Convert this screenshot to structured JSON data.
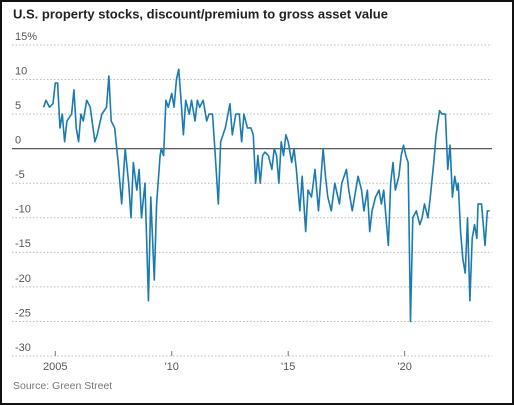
{
  "chart_data": {
    "type": "line",
    "title": "U.S. property stocks, discount/premium to gross asset value",
    "source": "Source: Green Street",
    "color": "#1b7bb0",
    "x": [
      2004.5,
      2004.6,
      2004.75,
      2004.9,
      2005.0,
      2005.1,
      2005.2,
      2005.3,
      2005.4,
      2005.5,
      2005.7,
      2005.8,
      2005.9,
      2006.0,
      2006.1,
      2006.2,
      2006.35,
      2006.5,
      2006.7,
      2006.8,
      2007.0,
      2007.2,
      2007.3,
      2007.4,
      2007.55,
      2007.7,
      2007.85,
      2008.0,
      2008.15,
      2008.25,
      2008.35,
      2008.5,
      2008.6,
      2008.7,
      2008.85,
      2009.0,
      2009.1,
      2009.25,
      2009.35,
      2009.5,
      2009.55,
      2009.65,
      2009.75,
      2009.85,
      2010.0,
      2010.1,
      2010.2,
      2010.3,
      2010.4,
      2010.5,
      2010.6,
      2010.75,
      2010.85,
      2011.0,
      2011.1,
      2011.2,
      2011.35,
      2011.5,
      2011.6,
      2011.75,
      2011.85,
      2012.0,
      2012.1,
      2012.2,
      2012.3,
      2012.5,
      2012.6,
      2012.75,
      2012.9,
      2013.0,
      2013.1,
      2013.25,
      2013.4,
      2013.5,
      2013.6,
      2013.7,
      2013.8,
      2013.9,
      2014.0,
      2014.15,
      2014.3,
      2014.4,
      2014.5,
      2014.6,
      2014.7,
      2014.8,
      2014.9,
      2015.0,
      2015.15,
      2015.25,
      2015.35,
      2015.5,
      2015.6,
      2015.75,
      2015.85,
      2016.0,
      2016.15,
      2016.3,
      2016.5,
      2016.6,
      2016.7,
      2016.85,
      2017.0,
      2017.2,
      2017.3,
      2017.5,
      2017.6,
      2017.75,
      2017.9,
      2018.0,
      2018.15,
      2018.25,
      2018.4,
      2018.5,
      2018.6,
      2018.75,
      2018.9,
      2019.0,
      2019.1,
      2019.3,
      2019.4,
      2019.5,
      2019.6,
      2019.75,
      2019.85,
      2019.95,
      2020.05,
      2020.15,
      2020.25,
      2020.35,
      2020.5,
      2020.65,
      2020.75,
      2020.85,
      2021.0,
      2021.1,
      2021.25,
      2021.35,
      2021.5,
      2021.6,
      2021.75,
      2021.85,
      2021.95,
      2022.05,
      2022.15,
      2022.25,
      2022.3,
      2022.4,
      2022.5,
      2022.6,
      2022.7,
      2022.8,
      2022.9,
      2023.0,
      2023.1,
      2023.15,
      2023.3,
      2023.4,
      2023.45,
      2023.55,
      2023.65
    ],
    "values": [
      6,
      7,
      6,
      6.5,
      9.5,
      9.5,
      3,
      5,
      1,
      4,
      5,
      8.5,
      3,
      1,
      5,
      4,
      7,
      6,
      1,
      2,
      5,
      6,
      10.5,
      4,
      3,
      -2,
      -8,
      0,
      -5,
      -10,
      -2,
      -6,
      -3,
      -10,
      -5,
      -22,
      -7,
      -19,
      -8,
      -1,
      0,
      -1,
      7,
      6,
      8,
      6,
      10,
      11.5,
      7,
      2,
      7,
      5,
      7,
      4,
      7,
      6,
      7,
      4,
      5,
      5,
      0,
      -8,
      1,
      2,
      3,
      6.5,
      2,
      5,
      5,
      1,
      5,
      3,
      3,
      2,
      -5,
      -1,
      -5,
      -1,
      -0.5,
      -1,
      -3,
      0,
      -1,
      -5,
      1,
      -1,
      2,
      1,
      -2,
      0,
      -3,
      -9,
      -4,
      -12,
      -6,
      -7,
      -3,
      -9,
      0,
      -4,
      -7,
      -9,
      -5,
      -8,
      -5,
      -3,
      -6,
      -9,
      -6,
      -4,
      -6,
      -9,
      -6,
      -12,
      -9,
      -7,
      -6,
      -8,
      -6,
      -14,
      -5,
      -2,
      -6,
      -4,
      -1,
      0.5,
      -1,
      -2,
      -25,
      -10,
      -9,
      -11,
      -10,
      -8,
      -10,
      -7,
      -2,
      2,
      5.5,
      5,
      5,
      -3,
      0.5,
      -7,
      -4,
      -6,
      -5,
      -12,
      -16,
      -18,
      -10,
      -22,
      -13,
      -11,
      -13,
      -8,
      -8,
      -12,
      -14,
      -9,
      -9
    ],
    "xlim": [
      2004,
      2023.75
    ],
    "xticks": [
      {
        "value": 2005,
        "label": "2005"
      },
      {
        "value": 2010,
        "label": "'10"
      },
      {
        "value": 2015,
        "label": "'15"
      },
      {
        "value": 2020,
        "label": "'20"
      }
    ],
    "ylim": [
      -30,
      15
    ],
    "yticks": [
      {
        "value": 15,
        "label": "15%"
      },
      10,
      5,
      0,
      -5,
      -10,
      -15,
      -20,
      -25,
      -30
    ],
    "grid": true
  }
}
